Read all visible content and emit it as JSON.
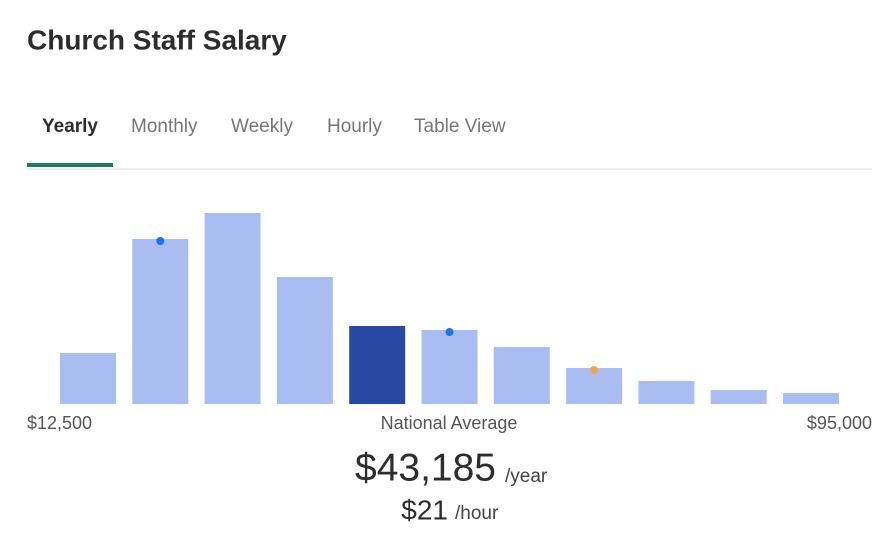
{
  "header": {
    "title": "Church Staff Salary"
  },
  "tabs": {
    "items": [
      "Yearly",
      "Monthly",
      "Weekly",
      "Hourly",
      "Table View"
    ],
    "active": 0
  },
  "chart_data": {
    "type": "bar",
    "values": [
      51,
      165,
      191,
      127,
      78,
      74,
      57,
      36,
      23,
      14,
      11
    ],
    "color": "#a9bdf2",
    "highlight": {
      "index": 4,
      "color": "#2748a3"
    },
    "markers": [
      {
        "bar": 1,
        "color": "#1a73e8"
      },
      {
        "bar": 5,
        "color": "#1a73e8"
      },
      {
        "bar": 7,
        "color": "#f5a34a"
      }
    ],
    "axis_labels": {
      "min": "$12,500",
      "center": "National Average",
      "max": "$95,000"
    }
  },
  "summary": {
    "yearly": "$43,185",
    "yearly_unit": "/year",
    "hourly": "$21",
    "hourly_unit": "/hour"
  }
}
